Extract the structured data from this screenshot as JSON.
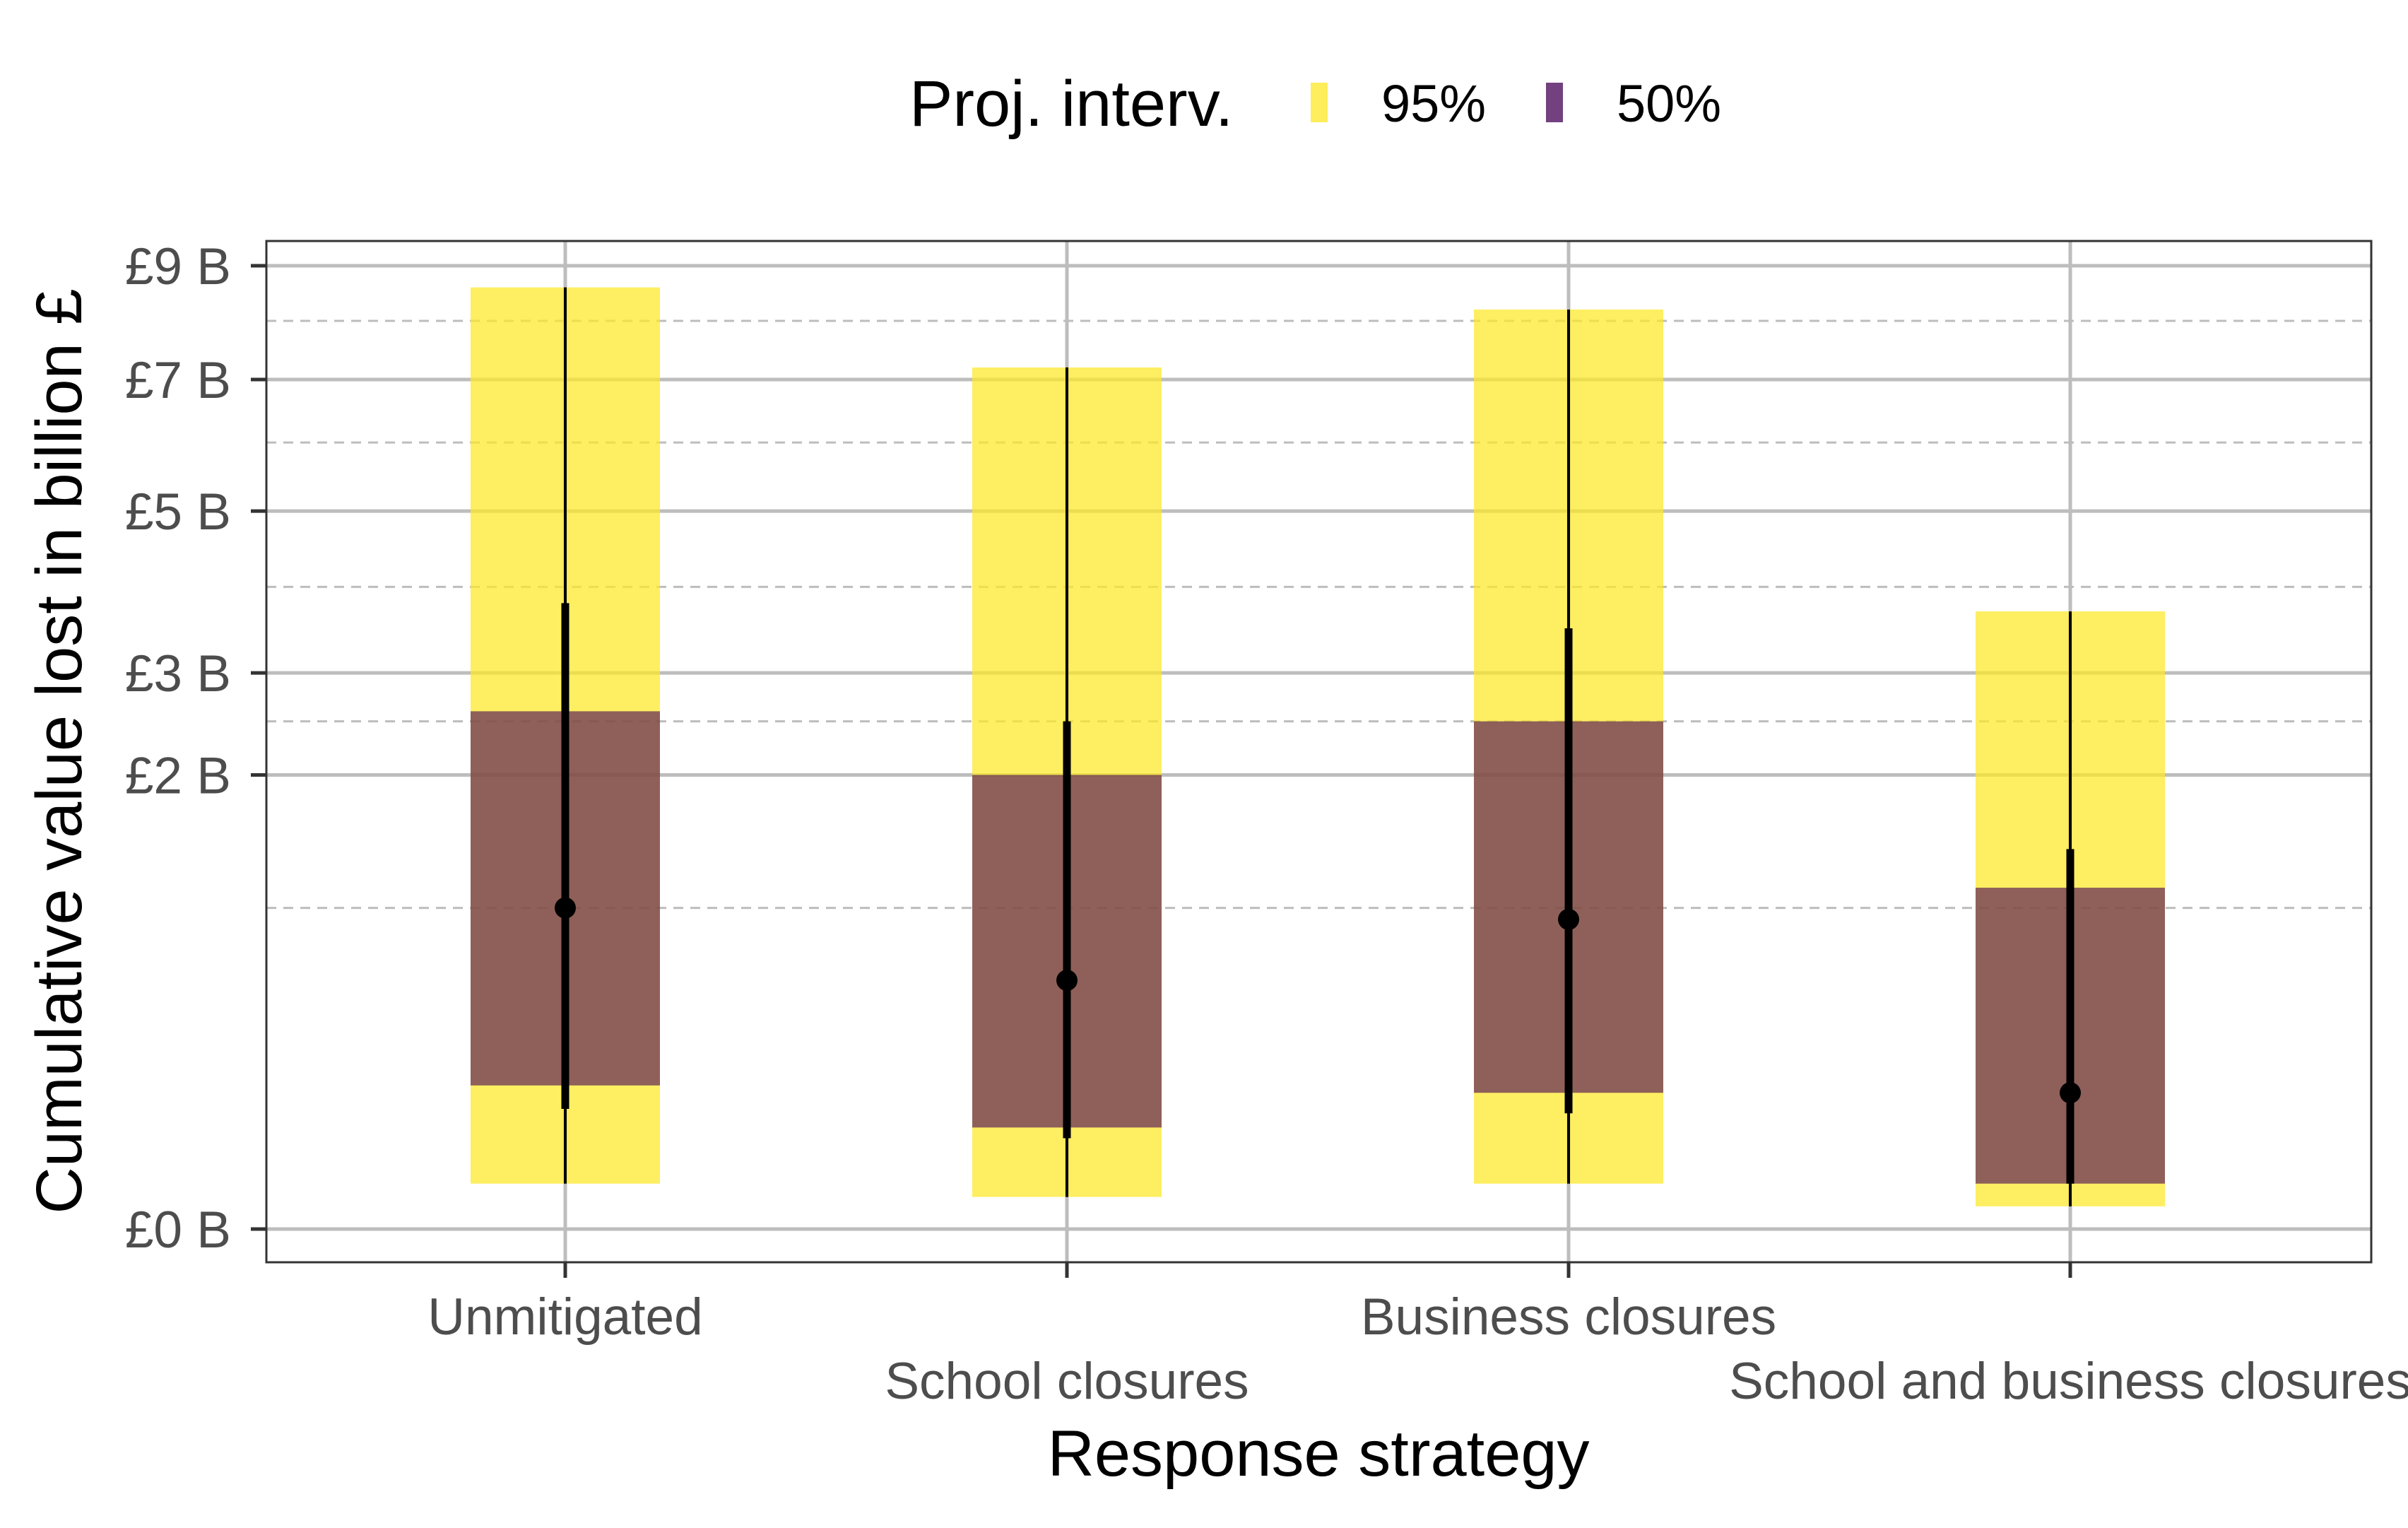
{
  "chart_data": {
    "type": "bar",
    "legend": {
      "title": "Proj. interv.",
      "position": "top",
      "entries": [
        {
          "label": "95%",
          "color": "#fde725"
        },
        {
          "label": "50%",
          "color": "#440154"
        }
      ]
    },
    "xlabel": "Response strategy",
    "ylabel": "Cumulative value lost in billion £",
    "y_scale": "sqrt",
    "ylim": [
      0,
      9.5
    ],
    "y_major_ticks": [
      {
        "value": 0,
        "label": "£0 B"
      },
      {
        "value": 2,
        "label": "£2 B"
      },
      {
        "value": 3,
        "label": "£3 B"
      },
      {
        "value": 5,
        "label": "£5 B"
      },
      {
        "value": 7,
        "label": "£7 B"
      },
      {
        "value": 9,
        "label": "£9 B"
      }
    ],
    "y_minor_gridlines": [
      1,
      2.5,
      4,
      6,
      8
    ],
    "grid": true,
    "categories": [
      "Unmitigated",
      "School closures",
      "Business closures",
      "School and business closures"
    ],
    "series": [
      {
        "name": "95%",
        "lower": [
          0.02,
          0.01,
          0.02,
          0.005
        ],
        "upper": [
          8.6,
          7.2,
          8.2,
          3.7
        ]
      },
      {
        "name": "50%",
        "lower": [
          0.2,
          0.1,
          0.18,
          0.02
        ],
        "upper": [
          2.6,
          2.0,
          2.5,
          1.13
        ]
      }
    ],
    "whiskers": {
      "thin_lower": [
        0.02,
        0.01,
        0.02,
        0.005
      ],
      "thin_upper": [
        8.6,
        7.2,
        8.2,
        3.7
      ],
      "thick_lower": [
        0.14,
        0.08,
        0.13,
        0.02
      ],
      "thick_upper": [
        3.8,
        2.5,
        3.5,
        1.4
      ]
    },
    "median": [
      1.0,
      0.6,
      0.93,
      0.18
    ]
  }
}
